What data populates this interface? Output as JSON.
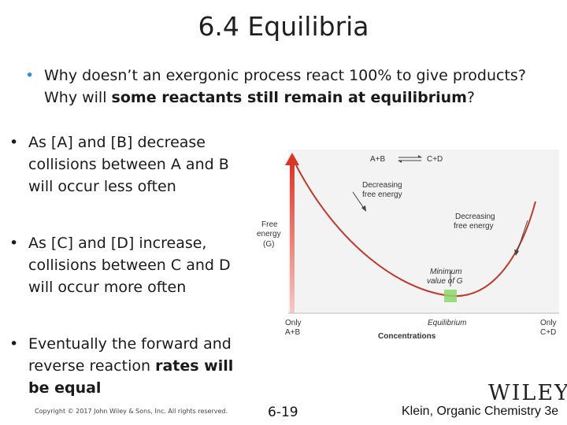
{
  "slide": {
    "title": "6.4 Equilibria",
    "bullet1": {
      "line1": "Why doesn’t an exergonic process react 100% to give products?",
      "line2_pre": "Why will ",
      "line2_bold": "some reactants still remain at equilibrium",
      "line2_post": "?"
    },
    "bullet2": {
      "text": "As [A] and [B] decrease collisions between A and B will occur less often"
    },
    "bullet3": {
      "text": "As [C] and [D] increase, collisions between C and D will occur more often"
    },
    "bullet4": {
      "text_pre": "Eventually the forward and reverse reaction ",
      "text_bold": "rates will be equal"
    },
    "bullet_glyph": "•"
  },
  "figure": {
    "reaction_left": "A+B",
    "reaction_right": "C+D",
    "decreasing_left_1": "Decreasing",
    "decreasing_left_2": "free energy",
    "decreasing_right_1": "Decreasing",
    "decreasing_right_2": "free energy",
    "ylabel_1": "Free",
    "ylabel_2": "energy",
    "ylabel_3": "(G)",
    "minimum_1": "Minimum",
    "minimum_2": "value of G",
    "equilibrium": "Equilibrium",
    "only_left_1": "Only",
    "only_left_2": "A+B",
    "only_right_1": "Only",
    "only_right_2": "C+D",
    "xlabel": "Concentrations",
    "curve_color": "#c0392b",
    "axis_color": "#e74c3c",
    "minimum_marker_color": "#8cd66b"
  },
  "footer": {
    "copyright": "Copyright © 2017 John Wiley & Sons, Inc. All rights reserved.",
    "slide_number": "6-19",
    "brand": "WILEY",
    "book": "Klein, Organic Chemistry 3e"
  }
}
